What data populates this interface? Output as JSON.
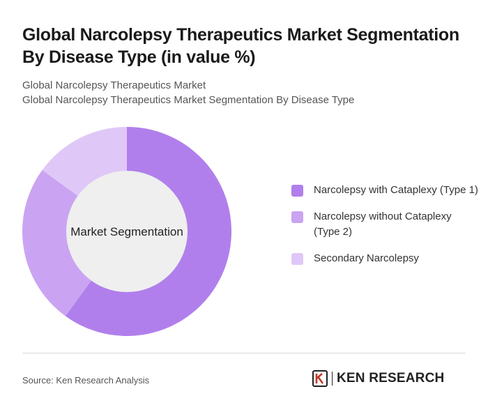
{
  "header": {
    "title": "Global Narcolepsy Therapeutics Market Segmentation By Disease Type (in value %)",
    "subtitle_1": "Global Narcolepsy Therapeutics Market",
    "subtitle_2": "Global Narcolepsy Therapeutics Market Segmentation By Disease Type"
  },
  "chart_data": {
    "type": "pie",
    "variant": "donut",
    "center_label": "Market Segmentation",
    "categories": [
      "Narcolepsy with Cataplexy (Type 1)",
      "Narcolepsy without Cataplexy (Type 2)",
      "Secondary Narcolepsy"
    ],
    "values": [
      60,
      25,
      15
    ],
    "colors": [
      "#b07fec",
      "#caa4f2",
      "#dfc8f7"
    ],
    "center_color": "#efefef",
    "legend_position": "right"
  },
  "footer": {
    "source": "Source: Ken Research Analysis",
    "brand": "KEN RESEARCH",
    "logo_icon": "ken-research-logo-icon"
  }
}
